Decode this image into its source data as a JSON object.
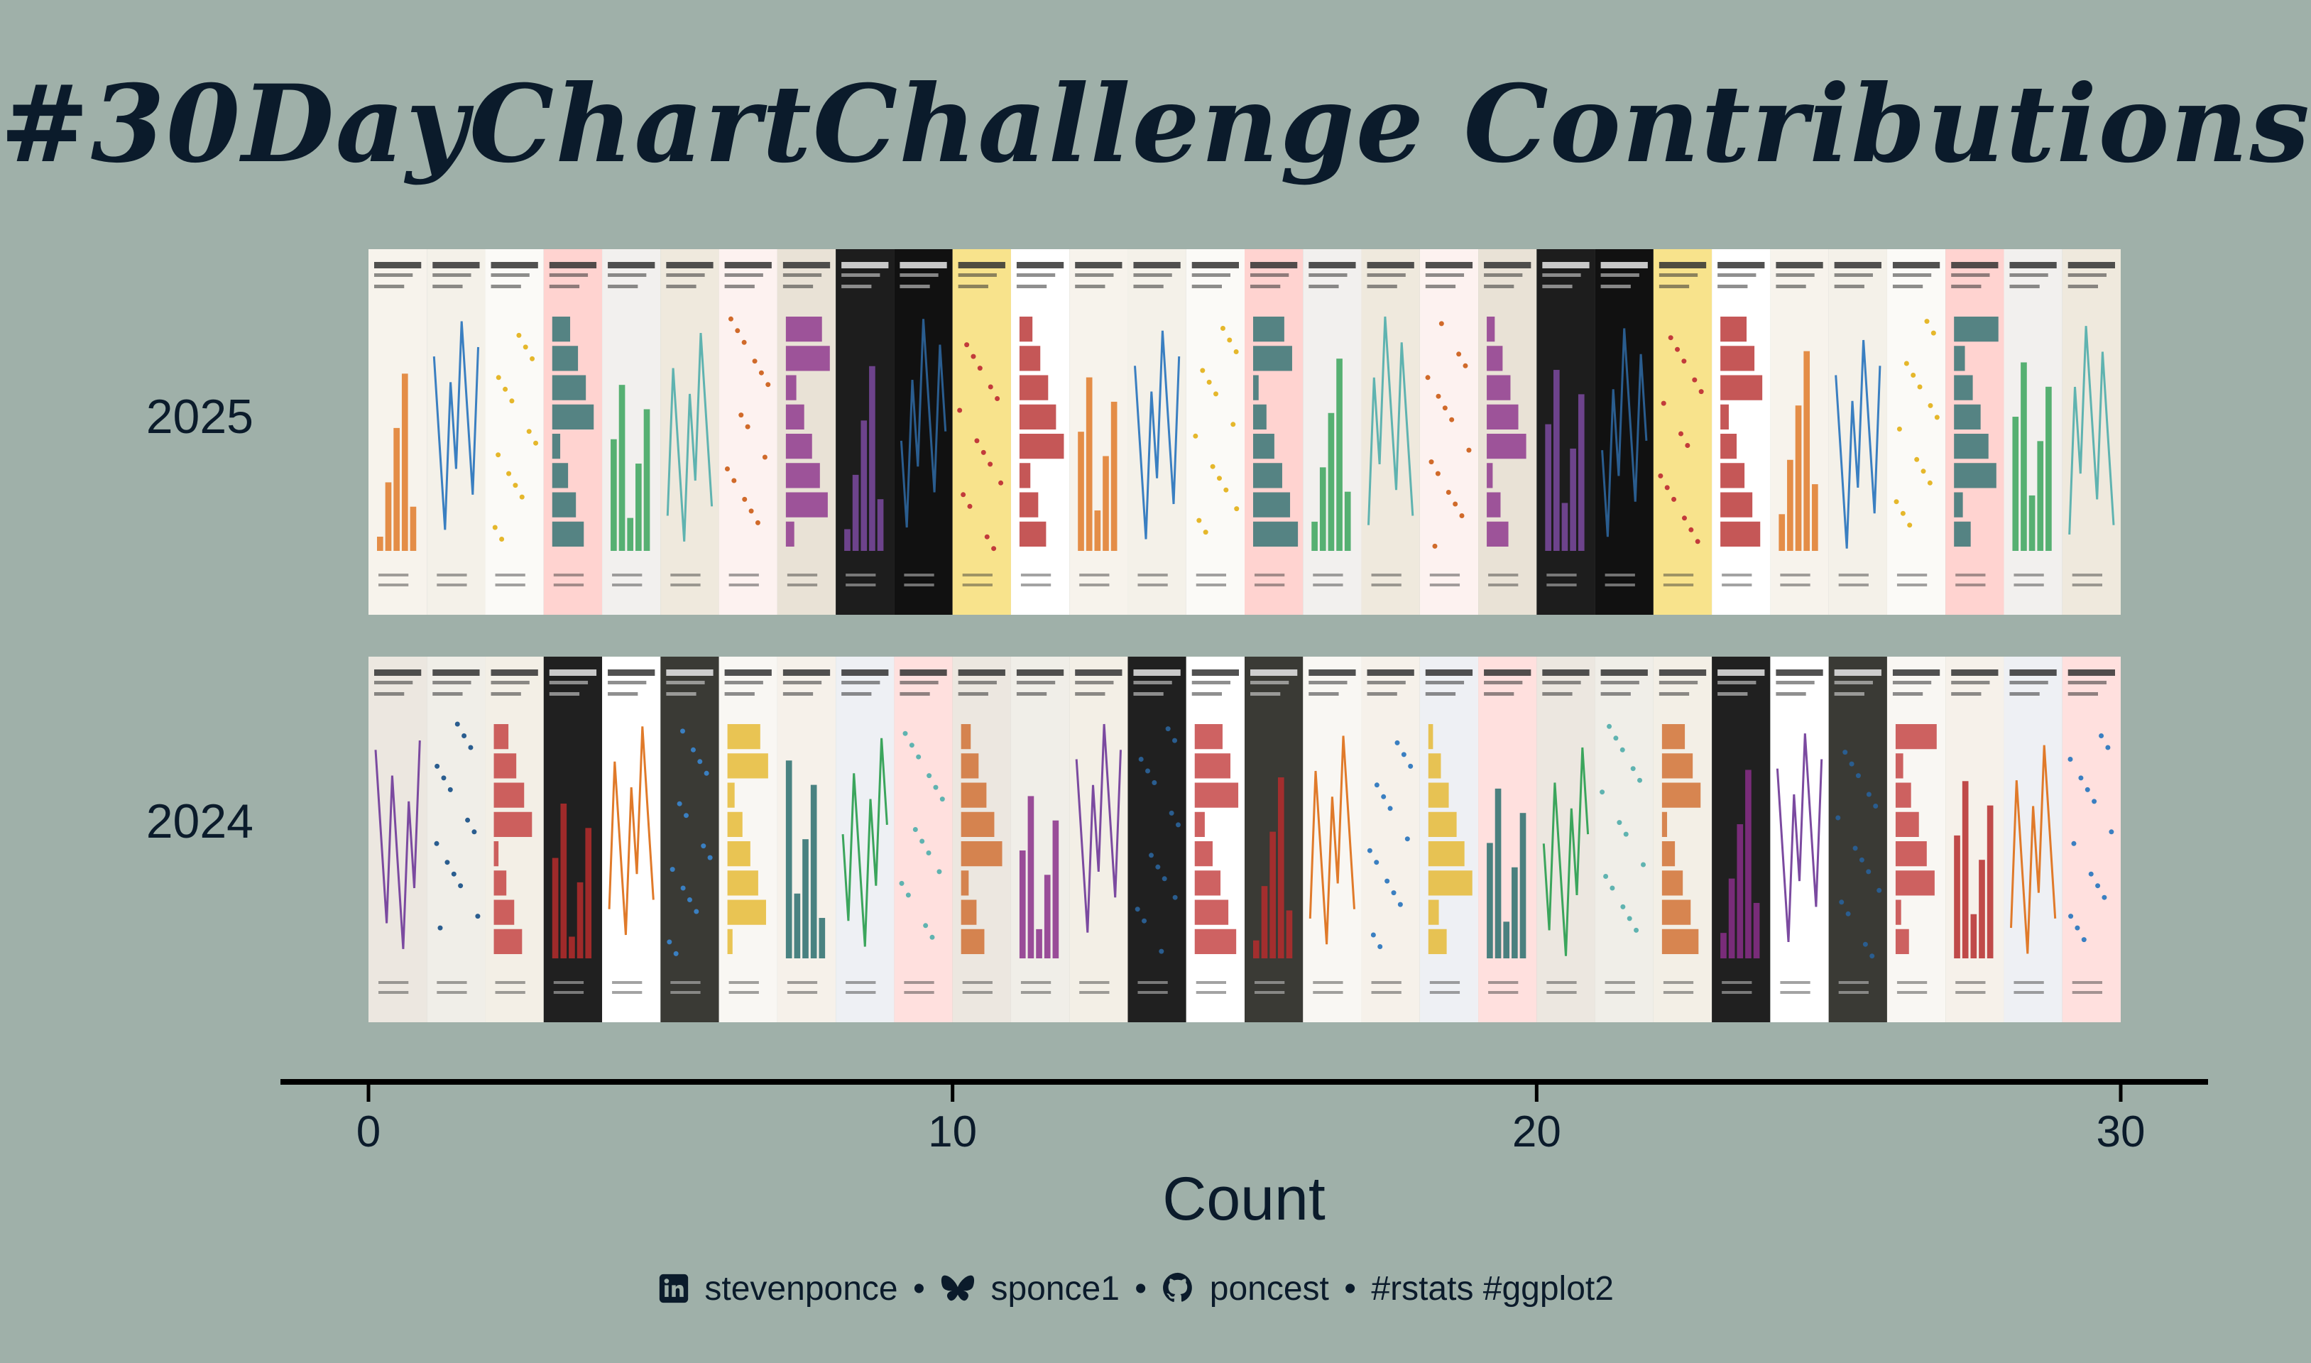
{
  "title": "#30DayChartChallenge Contributions",
  "chart_data": {
    "type": "bar",
    "orientation": "horizontal",
    "categories": [
      "2025",
      "2024"
    ],
    "values": [
      30,
      30
    ],
    "xlabel": "Count",
    "ylabel": "",
    "xlim": [
      0,
      30
    ],
    "xticks": [
      "0",
      "10",
      "20",
      "30"
    ]
  },
  "caption": {
    "linkedin": "stevenponce",
    "bluesky": "sponce1",
    "github": "poncest",
    "tags": "#rstats #ggplot2",
    "separator": "•"
  }
}
